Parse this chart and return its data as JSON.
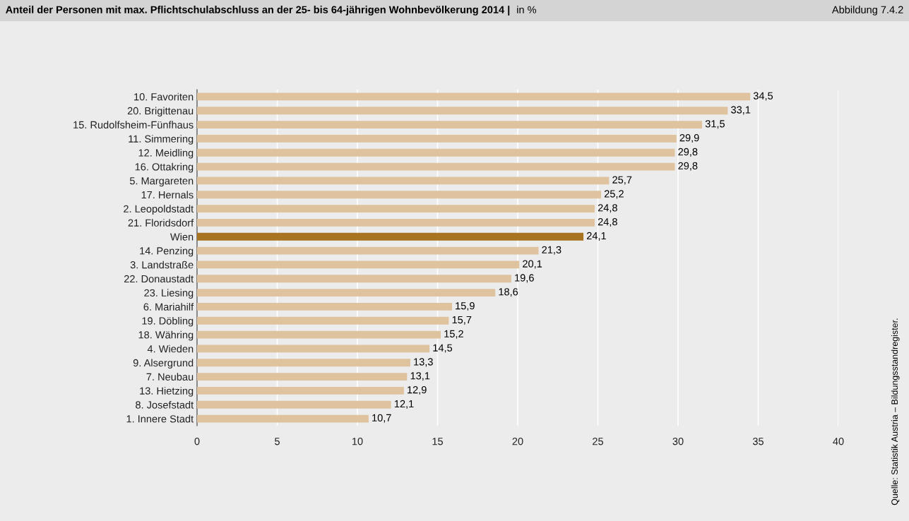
{
  "chart_data": {
    "type": "bar",
    "orientation": "horizontal",
    "title": "Anteil der Personen mit max. Pflichtschulabschluss an der 25- bis 64-jährigen Wohnbevölkerung 2014 |",
    "subtitle": "in %",
    "annotations": [
      "Abbildung 7.4.2",
      "Quelle: Statistik Austria – Bildungsstandregister."
    ],
    "categories": [
      "10. Favoriten",
      "20. Brigittenau",
      "15. Rudolfsheim-Fünfhaus",
      "11. Simmering",
      "12. Meidling",
      "16. Ottakring",
      "5. Margareten",
      "17. Hernals",
      "2. Leopoldstadt",
      "21. Floridsdorf",
      "Wien",
      "14. Penzing",
      "3. Landstraße",
      "22. Donaustadt",
      "23. Liesing",
      "6. Mariahilf",
      "19. Döbling",
      "18. Währing",
      "4. Wieden",
      "9. Alsergrund",
      "7. Neubau",
      "13. Hietzing",
      "8. Josefstadt",
      "1. Innere Stadt"
    ],
    "values": [
      34.5,
      33.1,
      31.5,
      29.9,
      29.8,
      29.8,
      25.7,
      25.2,
      24.8,
      24.8,
      24.1,
      21.3,
      20.1,
      19.6,
      18.6,
      15.9,
      15.7,
      15.2,
      14.5,
      13.3,
      13.1,
      12.9,
      12.1,
      10.7
    ],
    "value_labels": [
      "34,5",
      "33,1",
      "31,5",
      "29,9",
      "29,8",
      "29,8",
      "25,7",
      "25,2",
      "24,8",
      "24,8",
      "24,1",
      "21,3",
      "20,1",
      "19,6",
      "18,6",
      "15,9",
      "15,7",
      "15,2",
      "14,5",
      "13,3",
      "13,1",
      "12,9",
      "12,1",
      "10,7"
    ],
    "colors": [
      "#dfc29e",
      "#dfc29e",
      "#dfc29e",
      "#dfc29e",
      "#dfc29e",
      "#dfc29e",
      "#dfc29e",
      "#dfc29e",
      "#dfc29e",
      "#dfc29e",
      "#a8741f",
      "#dfc29e",
      "#dfc29e",
      "#dfc29e",
      "#dfc29e",
      "#dfc29e",
      "#dfc29e",
      "#dfc29e",
      "#dfc29e",
      "#dfc29e",
      "#dfc29e",
      "#dfc29e",
      "#dfc29e",
      "#dfc29e"
    ],
    "xlim": [
      0,
      40
    ],
    "xticks": [
      0,
      5,
      10,
      15,
      20,
      25,
      30,
      35,
      40
    ],
    "grid": "x"
  }
}
